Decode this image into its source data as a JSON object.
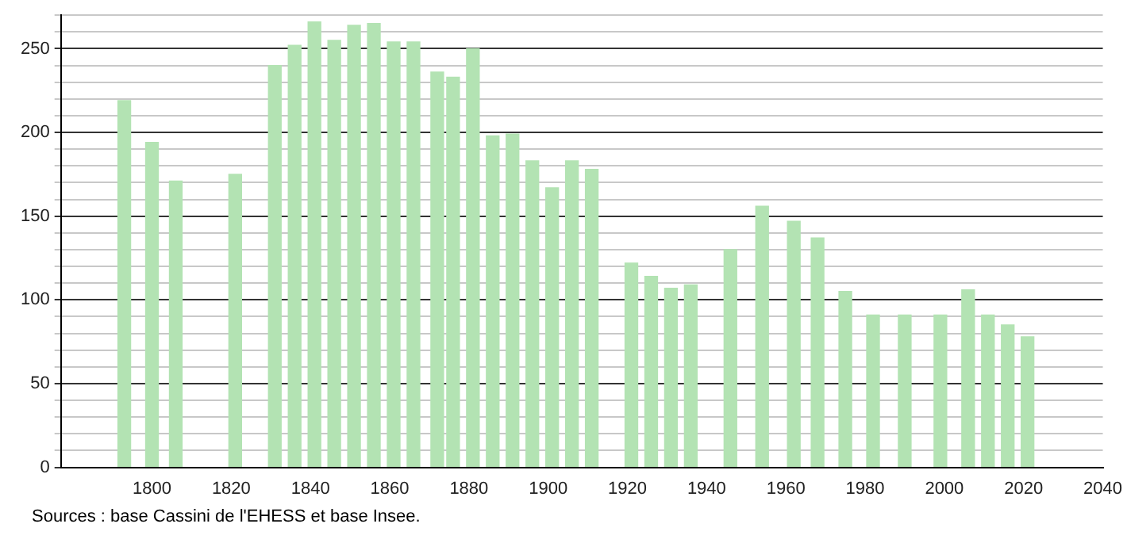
{
  "chart_data": {
    "type": "bar",
    "x": [
      1793,
      1800,
      1806,
      1821,
      1831,
      1836,
      1841,
      1846,
      1851,
      1856,
      1861,
      1866,
      1872,
      1876,
      1881,
      1886,
      1891,
      1896,
      1901,
      1906,
      1911,
      1921,
      1926,
      1931,
      1936,
      1946,
      1954,
      1962,
      1968,
      1975,
      1982,
      1990,
      1999,
      2006,
      2011,
      2016,
      2021
    ],
    "values": [
      219,
      194,
      171,
      175,
      240,
      252,
      266,
      255,
      264,
      265,
      254,
      254,
      236,
      233,
      250,
      198,
      199,
      183,
      167,
      183,
      178,
      122,
      114,
      107,
      109,
      130,
      156,
      147,
      137,
      105,
      91,
      91,
      91,
      106,
      91,
      85,
      78
    ],
    "color": "#b3e3b3",
    "xlim": [
      1777,
      2040
    ],
    "xticks": [
      1800,
      1820,
      1840,
      1860,
      1880,
      1900,
      1920,
      1940,
      1960,
      1980,
      2000,
      2020,
      2040
    ],
    "ylim": [
      0,
      270
    ],
    "yticks": [
      0,
      {
        "value": 10,
        "label": null
      },
      {
        "value": 20,
        "label": null
      },
      {
        "value": 30,
        "label": null
      },
      {
        "value": 40,
        "label": null
      },
      50,
      {
        "value": 60,
        "label": null
      },
      {
        "value": 70,
        "label": null
      },
      {
        "value": 80,
        "label": null
      },
      {
        "value": 90,
        "label": null
      },
      100,
      {
        "value": 110,
        "label": null
      },
      {
        "value": 120,
        "label": null
      },
      {
        "value": 130,
        "label": null
      },
      {
        "value": 140,
        "label": null
      },
      150,
      {
        "value": 160,
        "label": null
      },
      {
        "value": 170,
        "label": null
      },
      {
        "value": 180,
        "label": null
      },
      {
        "value": 190,
        "label": null
      },
      200,
      {
        "value": 210,
        "label": null
      },
      {
        "value": 220,
        "label": null
      },
      {
        "value": 230,
        "label": null
      },
      {
        "value": 240,
        "label": null
      },
      250,
      {
        "value": 260,
        "label": null
      },
      {
        "value": 270,
        "label": null
      }
    ],
    "grid": "y",
    "legend": false,
    "annotations": [
      "Sources : base Cassini de l'EHESS et base Insee."
    ]
  }
}
